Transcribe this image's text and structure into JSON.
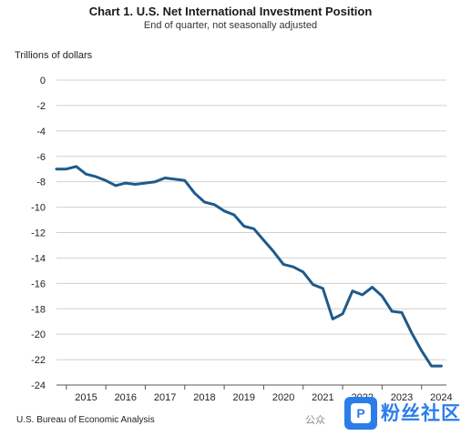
{
  "header": {
    "title": "Chart 1. U.S. Net International Investment Position",
    "subtitle": "End of quarter, not seasonally adjusted"
  },
  "footer": {
    "source": "U.S. Bureau of Economic Analysis"
  },
  "watermark": {
    "text": "公众",
    "brand": "粉丝社区",
    "badge_glyph": "P"
  },
  "chart_data": {
    "type": "line",
    "title": "Chart 1. U.S. Net International Investment Position",
    "subtitle": "End of quarter, not seasonally adjusted",
    "ylabel": "Trillions of dollars",
    "xlabel": "",
    "ylim": [
      -24,
      0
    ],
    "yticks": [
      0,
      -2,
      -4,
      -6,
      -8,
      -10,
      -12,
      -14,
      -16,
      -18,
      -20,
      -22,
      -24
    ],
    "x_categories": [
      "2015",
      "2016",
      "2017",
      "2018",
      "2019",
      "2020",
      "2021",
      "2022",
      "2023",
      "2024"
    ],
    "grid": true,
    "line_color": "#1f5a8a",
    "series": [
      {
        "x": [
          "2014Q3",
          "2014Q4",
          "2015Q1",
          "2015Q2",
          "2015Q3",
          "2015Q4",
          "2016Q1",
          "2016Q2",
          "2016Q3",
          "2016Q4",
          "2017Q1",
          "2017Q2",
          "2017Q3",
          "2017Q4",
          "2018Q1",
          "2018Q2",
          "2018Q3",
          "2018Q4",
          "2019Q1",
          "2019Q2",
          "2019Q3",
          "2019Q4",
          "2020Q1",
          "2020Q2",
          "2020Q3",
          "2020Q4",
          "2021Q1",
          "2021Q2",
          "2021Q3",
          "2021Q4",
          "2022Q1",
          "2022Q2",
          "2022Q3",
          "2022Q4",
          "2023Q1",
          "2023Q2",
          "2023Q3",
          "2023Q4",
          "2024Q1",
          "2024Q2"
        ],
        "values": [
          -7.0,
          -7.0,
          -6.8,
          -7.4,
          -7.6,
          -7.9,
          -8.3,
          -8.1,
          -8.2,
          -8.1,
          -8.0,
          -7.7,
          -7.8,
          -7.9,
          -8.9,
          -9.6,
          -9.8,
          -10.3,
          -10.6,
          -11.5,
          -11.7,
          -12.6,
          -13.5,
          -14.5,
          -14.7,
          -15.1,
          -16.1,
          -16.4,
          -18.8,
          -18.4,
          -16.6,
          -16.9,
          -16.3,
          -17.0,
          -18.2,
          -18.3,
          -19.9,
          -21.3,
          -22.5,
          -22.5
        ]
      }
    ]
  }
}
